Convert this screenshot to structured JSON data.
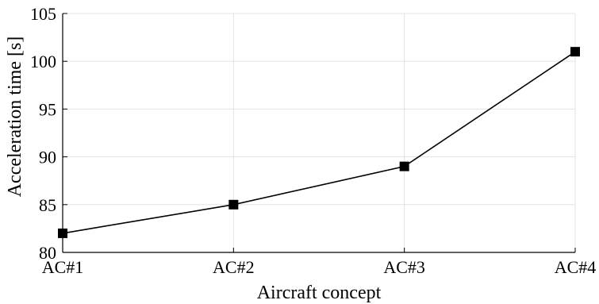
{
  "chart_data": {
    "type": "line",
    "categories": [
      "AC#1",
      "AC#2",
      "AC#3",
      "AC#4"
    ],
    "series": [
      {
        "values": [
          82,
          85,
          89,
          101
        ],
        "color": "#000000",
        "marker": "square"
      }
    ],
    "xlabel": "Aircraft concept",
    "ylabel": "Acceleration time [s]",
    "ylim": [
      80,
      105
    ],
    "yticks": [
      80,
      85,
      90,
      95,
      100,
      105
    ],
    "grid": true
  }
}
